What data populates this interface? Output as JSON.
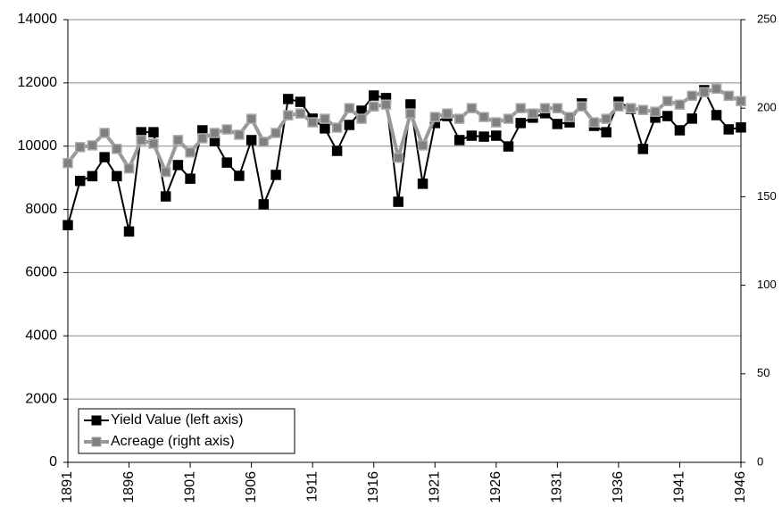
{
  "chart_data": {
    "type": "line",
    "x": [
      1891,
      1892,
      1893,
      1894,
      1895,
      1896,
      1897,
      1898,
      1899,
      1900,
      1901,
      1902,
      1903,
      1904,
      1905,
      1906,
      1907,
      1908,
      1909,
      1910,
      1911,
      1912,
      1913,
      1914,
      1915,
      1916,
      1917,
      1918,
      1919,
      1920,
      1921,
      1922,
      1923,
      1924,
      1925,
      1926,
      1927,
      1928,
      1929,
      1930,
      1931,
      1932,
      1933,
      1934,
      1935,
      1936,
      1937,
      1938,
      1939,
      1940,
      1941,
      1942,
      1943,
      1944,
      1945,
      1946
    ],
    "xlim": [
      1891,
      1946
    ],
    "xticks": [
      1891,
      1896,
      1901,
      1906,
      1911,
      1916,
      1921,
      1926,
      1931,
      1936,
      1941,
      1946
    ],
    "ylim": [
      0,
      14000
    ],
    "yticks": [
      0,
      2000,
      4000,
      6000,
      8000,
      10000,
      12000,
      14000
    ],
    "y2lim": [
      0,
      250
    ],
    "y2ticks": [
      0,
      50,
      100,
      150,
      200,
      250
    ],
    "grid": true,
    "legend": "lower left",
    "series": [
      {
        "name": "Yield Value (left axis)",
        "color": "#000000",
        "axis": "y",
        "values": [
          7500,
          8900,
          9050,
          9650,
          9050,
          7300,
          10440,
          10440,
          8410,
          9400,
          8970,
          10500,
          10160,
          9480,
          9060,
          10190,
          8160,
          9090,
          11490,
          11400,
          10870,
          10560,
          9850,
          10670,
          11120,
          11600,
          11520,
          8240,
          11320,
          8810,
          10730,
          10950,
          10190,
          10330,
          10300,
          10330,
          9990,
          10730,
          10900,
          11040,
          10700,
          10750,
          11350,
          10640,
          10440,
          11400,
          11180,
          9910,
          10900,
          10950,
          10500,
          10870,
          11770,
          10980,
          10530,
          10590
        ]
      },
      {
        "name": "Acreage (right axis)",
        "color": "#808080",
        "axis": "y2",
        "values": [
          169,
          178,
          179,
          186,
          177,
          166,
          182,
          180,
          164,
          182,
          175,
          183,
          186,
          188,
          185,
          194,
          181,
          186,
          196,
          197,
          192,
          194,
          189,
          200,
          194,
          201,
          202,
          172,
          197,
          179,
          195,
          197,
          194,
          200,
          195,
          192,
          194,
          200,
          197,
          200,
          200,
          195,
          201,
          192,
          194,
          201,
          200,
          199,
          198,
          204,
          202,
          207,
          209,
          211,
          207,
          204
        ]
      }
    ]
  }
}
